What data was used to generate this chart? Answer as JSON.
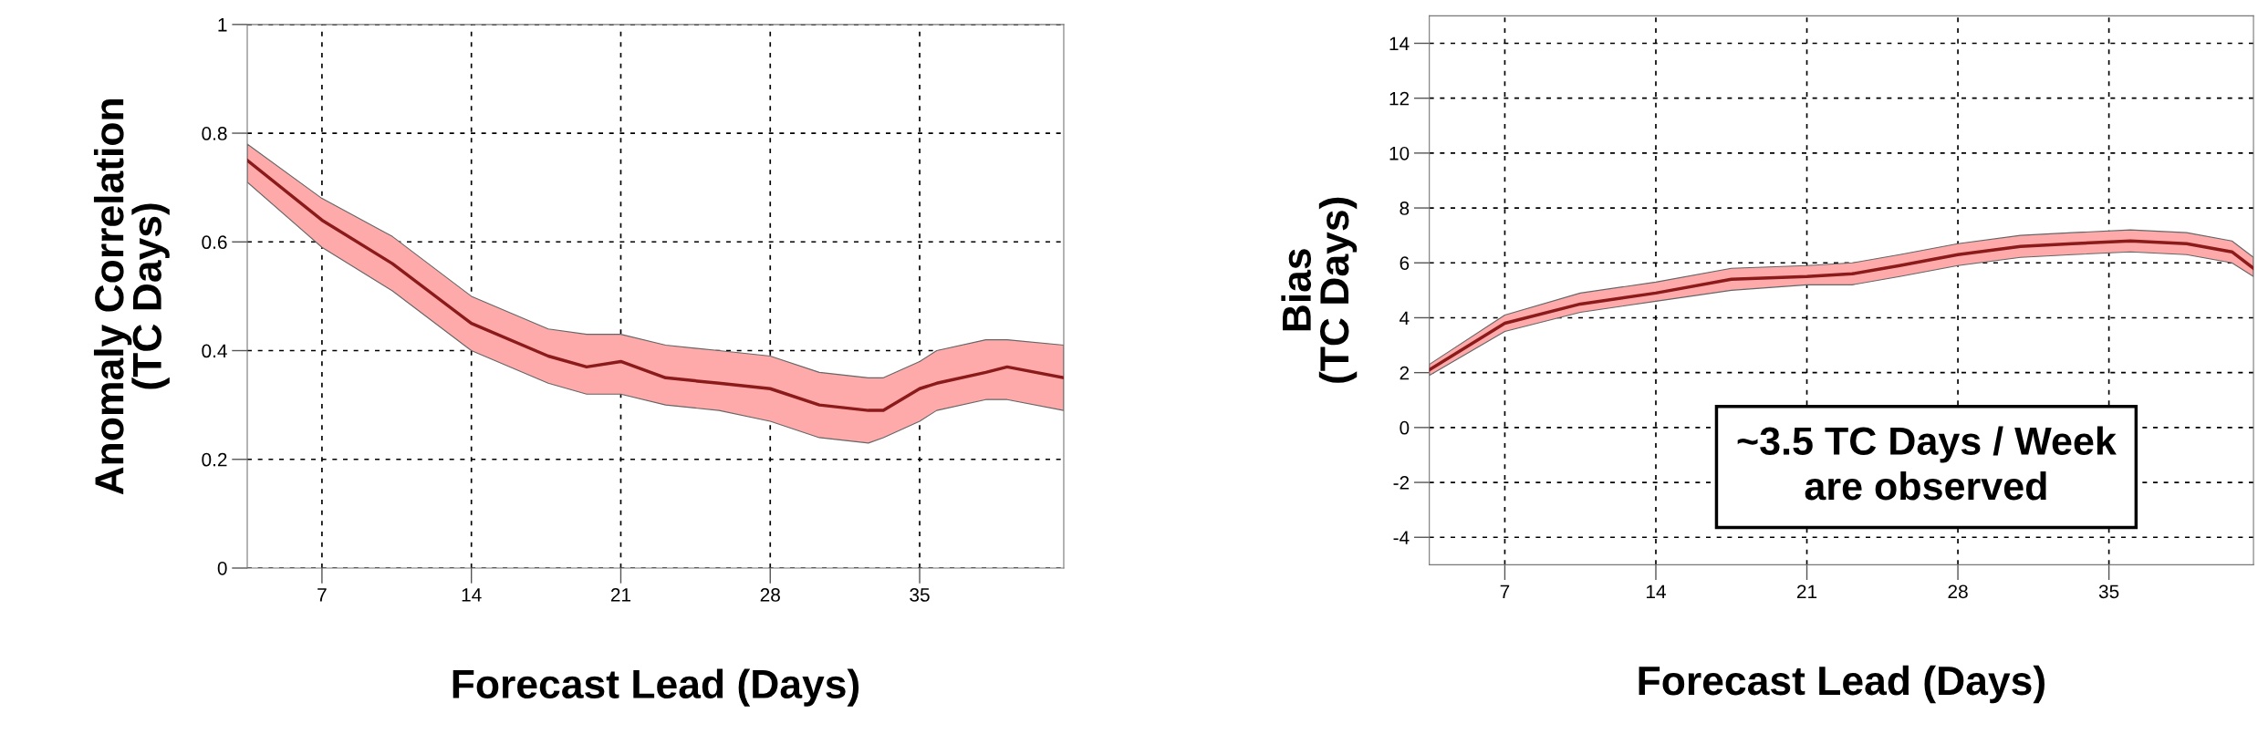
{
  "chart_data": [
    {
      "type": "line",
      "xlabel": "Forecast Lead (Days)",
      "ylabel": "Anomaly Correlation\n(TC Days)",
      "x": [
        3.5,
        7,
        10.3,
        14,
        17.6,
        19.4,
        21,
        23.1,
        25.6,
        28,
        30.3,
        32.6,
        33.3,
        35,
        35.8,
        38.1,
        39.1,
        41.75
      ],
      "series": [
        {
          "color": "#8b1a1a",
          "values": [
            0.75,
            0.64,
            0.56,
            0.45,
            0.39,
            0.37,
            0.38,
            0.35,
            0.34,
            0.33,
            0.3,
            0.29,
            0.29,
            0.33,
            0.34,
            0.36,
            0.37,
            0.35
          ],
          "lower": [
            0.71,
            0.59,
            0.51,
            0.4,
            0.34,
            0.32,
            0.32,
            0.3,
            0.29,
            0.27,
            0.24,
            0.23,
            0.24,
            0.27,
            0.29,
            0.31,
            0.31,
            0.29
          ],
          "upper": [
            0.78,
            0.68,
            0.61,
            0.5,
            0.44,
            0.43,
            0.43,
            0.41,
            0.4,
            0.39,
            0.36,
            0.35,
            0.35,
            0.38,
            0.4,
            0.42,
            0.42,
            0.41
          ]
        }
      ],
      "xlim": [
        3.5,
        41.75
      ],
      "xticks": [
        7,
        14,
        21,
        28,
        35
      ],
      "ylim": [
        0,
        1
      ],
      "yticks": [
        0,
        0.2,
        0.4,
        0.6,
        0.8,
        1
      ],
      "grid": true,
      "line_style": "solid",
      "marker": "none"
    },
    {
      "type": "line",
      "xlabel": "Forecast Lead (Days)",
      "ylabel": "Bias\n(TC Days)",
      "annotations": [
        "~3.5 TC Days / Week\nare observed"
      ],
      "x": [
        3.5,
        7,
        10.5,
        14,
        17.5,
        21,
        23.1,
        25.3,
        28,
        30.9,
        33.3,
        36,
        38.6,
        40.7,
        41.7
      ],
      "series": [
        {
          "color": "#8b1a1a",
          "values": [
            2.1,
            3.8,
            4.5,
            4.9,
            5.4,
            5.5,
            5.6,
            5.9,
            6.3,
            6.6,
            6.7,
            6.8,
            6.7,
            6.4,
            5.8
          ],
          "lower": [
            1.9,
            3.5,
            4.2,
            4.6,
            5.0,
            5.2,
            5.2,
            5.5,
            5.9,
            6.2,
            6.3,
            6.4,
            6.3,
            6.0,
            5.5
          ],
          "upper": [
            2.3,
            4.1,
            4.9,
            5.3,
            5.8,
            5.9,
            6.0,
            6.3,
            6.7,
            7.0,
            7.1,
            7.2,
            7.1,
            6.8,
            6.2
          ]
        }
      ],
      "xlim": [
        3.5,
        41.7
      ],
      "xticks": [
        7,
        14,
        21,
        28,
        35
      ],
      "ylim": [
        -5,
        15
      ],
      "yticks": [
        -4,
        -2,
        0,
        2,
        4,
        6,
        8,
        10,
        12,
        14
      ],
      "grid": true,
      "line_style": "solid",
      "marker": "none"
    }
  ]
}
